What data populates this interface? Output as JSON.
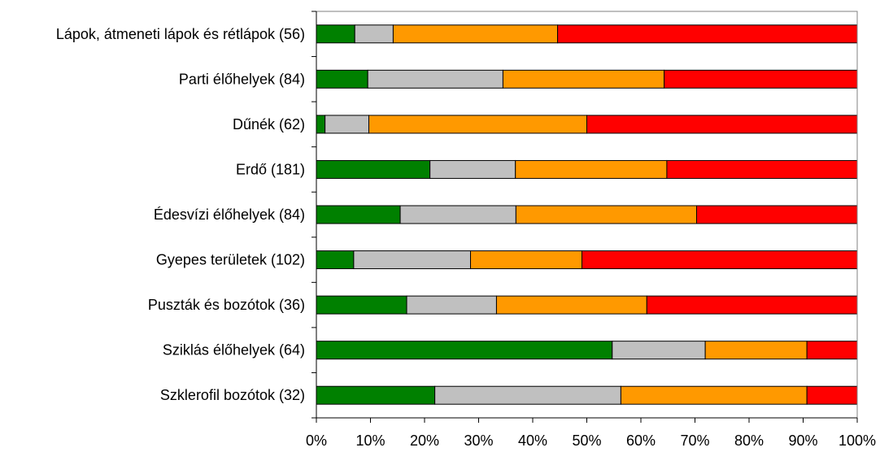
{
  "chart_data": {
    "type": "bar",
    "orientation": "horizontal",
    "stacked": "percent",
    "categories": [
      "Lápok, átmeneti lápok és rétlápok (56)",
      "Parti élőhelyek (84)",
      "Dűnék (62)",
      "Erdő (181)",
      "Édesvízi élőhelyek (84)",
      "Gyepes területek (102)",
      "Puszták és bozótok (36)",
      "Sziklás élőhelyek (64)",
      "Szklerofil bozótok (32)"
    ],
    "series": [
      {
        "color": "#008000",
        "values": [
          7.1,
          9.5,
          1.6,
          21.0,
          15.5,
          6.9,
          16.7,
          54.7,
          21.9
        ]
      },
      {
        "color": "#C0C0C0",
        "values": [
          7.1,
          25.0,
          8.1,
          15.8,
          21.4,
          21.6,
          16.6,
          17.2,
          34.4
        ]
      },
      {
        "color": "#FF9900",
        "values": [
          30.4,
          29.8,
          40.3,
          28.0,
          33.4,
          20.6,
          27.8,
          18.8,
          34.4
        ]
      },
      {
        "color": "#FF0000",
        "values": [
          55.4,
          35.7,
          50.0,
          35.2,
          29.7,
          50.9,
          38.9,
          9.3,
          9.3
        ]
      }
    ],
    "x_ticks": [
      "0%",
      "10%",
      "20%",
      "30%",
      "40%",
      "50%",
      "60%",
      "70%",
      "80%",
      "90%",
      "100%"
    ],
    "xlim": [
      0,
      100
    ],
    "grid": false,
    "legend": "none"
  }
}
